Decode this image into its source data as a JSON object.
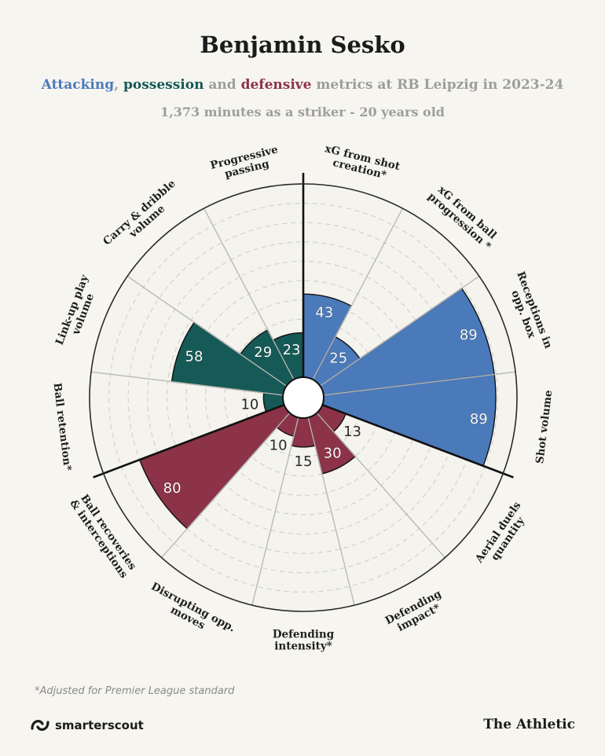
{
  "header": {
    "title": "Benjamin Sesko",
    "subtitle_attacking": "Attacking",
    "subtitle_sep1": ", ",
    "subtitle_possession": "possession",
    "subtitle_and": " and ",
    "subtitle_defensive": "defensive",
    "subtitle_rest": " metrics at RB Leipzig in 2023-24",
    "minutes": "1,373 minutes as a striker - 20 years old"
  },
  "colors": {
    "attacking": "#4b7abb",
    "possession": "#155a56",
    "defensive": "#8c3347",
    "background": "#f6f5f0",
    "gridline": "#bdbdbd"
  },
  "chart_data": {
    "type": "polar-bar",
    "title": "Benjamin Sesko",
    "rlim": [
      0,
      100
    ],
    "categories": [
      {
        "label": "xG from shot creation*",
        "value": 43,
        "group": "attacking"
      },
      {
        "label": "xG from ball progression *",
        "value": 25,
        "group": "attacking"
      },
      {
        "label": "Receptions in opp. box",
        "value": 89,
        "group": "attacking"
      },
      {
        "label": "Shot volume",
        "value": 89,
        "group": "attacking"
      },
      {
        "label": "Aerial duels quantity",
        "value": 13,
        "group": "defensive"
      },
      {
        "label": "Defending impact*",
        "value": 30,
        "group": "defensive"
      },
      {
        "label": "Defending intensity*",
        "value": 15,
        "group": "defensive"
      },
      {
        "label": "Disrupting opp. moves",
        "value": 10,
        "group": "defensive"
      },
      {
        "label": "Ball recoveries & interceptions",
        "value": 80,
        "group": "defensive"
      },
      {
        "label": "Ball retention*",
        "value": 10,
        "group": "possession"
      },
      {
        "label": "Link-up play volume",
        "value": 58,
        "group": "possession"
      },
      {
        "label": "Carry & dribble volume",
        "value": 29,
        "group": "possession"
      },
      {
        "label": "Progressive passing",
        "value": 23,
        "group": "possession"
      }
    ]
  },
  "footer": {
    "footnote": "*Adjusted for Premier League standard",
    "brand_left": "smarterscout",
    "brand_left_icon": "smarterscout-logo-icon",
    "brand_right": "The Athletic"
  }
}
